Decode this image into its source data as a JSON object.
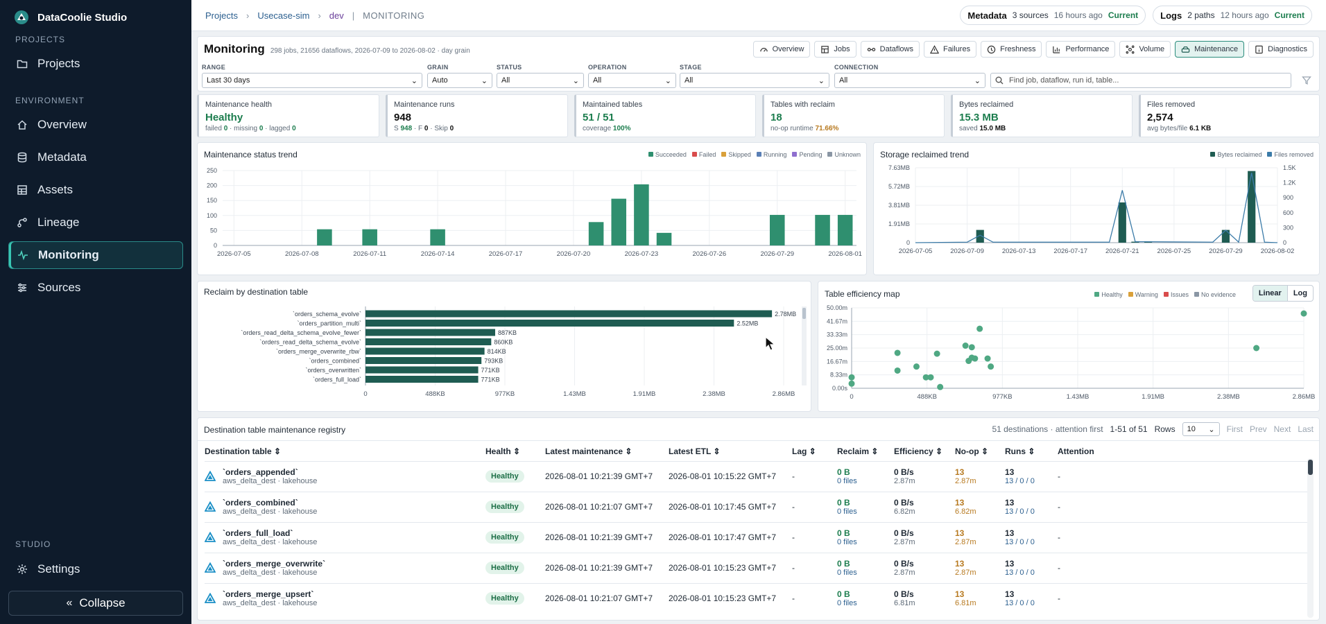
{
  "app": {
    "title": "DataCoolie Studio"
  },
  "sidebar": {
    "section_projects": "PROJECTS",
    "section_environment": "ENVIRONMENT",
    "section_studio": "STUDIO",
    "items": [
      {
        "label": "Projects",
        "icon": "folder-icon"
      },
      {
        "label": "Overview",
        "icon": "home-icon"
      },
      {
        "label": "Metadata",
        "icon": "database-icon"
      },
      {
        "label": "Assets",
        "icon": "grid-icon"
      },
      {
        "label": "Lineage",
        "icon": "lineage-icon"
      },
      {
        "label": "Monitoring",
        "icon": "pulse-icon",
        "active": true
      },
      {
        "label": "Sources",
        "icon": "sliders-icon"
      },
      {
        "label": "Settings",
        "icon": "gear-icon"
      }
    ],
    "collapse_label": "Collapse"
  },
  "breadcrumb": [
    "Projects",
    "Usecase-sim",
    "dev",
    "MONITORING"
  ],
  "status_pills": {
    "metadata": {
      "label": "Metadata",
      "count": "3 sources",
      "time": "16 hours ago",
      "state": "Current"
    },
    "logs": {
      "label": "Logs",
      "count": "2 paths",
      "time": "12 hours ago",
      "state": "Current"
    }
  },
  "page": {
    "title": "Monitoring",
    "subtitle": "298 jobs, 21656 dataflows, 2026-07-09 to 2026-08-02 · day grain",
    "tabs": [
      "Overview",
      "Jobs",
      "Dataflows",
      "Failures",
      "Freshness",
      "Performance",
      "Volume",
      "Maintenance",
      "Diagnostics"
    ],
    "active_tab": "Maintenance"
  },
  "filters": {
    "range": {
      "label": "RANGE",
      "value": "Last 30 days"
    },
    "grain": {
      "label": "GRAIN",
      "value": "Auto"
    },
    "status": {
      "label": "STATUS",
      "value": "All"
    },
    "operation": {
      "label": "OPERATION",
      "value": "All"
    },
    "stage": {
      "label": "STAGE",
      "value": "All"
    },
    "connection": {
      "label": "CONNECTION",
      "value": "All"
    },
    "search_placeholder": "Find job, dataflow, run id, table..."
  },
  "kpis": [
    {
      "title": "Maintenance health",
      "value": "Healthy",
      "sub": "failed 0 · missing 0 · lagged 0"
    },
    {
      "title": "Maintenance runs",
      "value": "948",
      "sub": "S 948 · F 0 · Skip 0"
    },
    {
      "title": "Maintained tables",
      "value": "51 / 51",
      "sub": "coverage 100%"
    },
    {
      "title": "Tables with reclaim",
      "value": "18",
      "sub": "no-op runtime 71.66%"
    },
    {
      "title": "Bytes reclaimed",
      "value": "15.3 MB",
      "sub": "saved 15.0 MB"
    },
    {
      "title": "Files removed",
      "value": "2,574",
      "sub": "avg bytes/file 6.1 KB"
    }
  ],
  "chart_data": [
    {
      "type": "bar",
      "title": "Maintenance status trend",
      "legend": [
        "Succeeded",
        "Failed",
        "Skipped",
        "Running",
        "Pending",
        "Unknown"
      ],
      "legend_colors": [
        "#2f8f6f",
        "#d94c4c",
        "#d9a03a",
        "#5a7fb5",
        "#8f6fcf",
        "#8a96a4"
      ],
      "ylim": [
        0,
        250
      ],
      "yticks": [
        "0",
        "50",
        "100",
        "150",
        "200",
        "250"
      ],
      "xticks": [
        "2026-07-05",
        "2026-07-08",
        "2026-07-11",
        "2026-07-14",
        "2026-07-17",
        "2026-07-20",
        "2026-07-23",
        "2026-07-26",
        "2026-07-29",
        "2026-08-01"
      ],
      "x": [
        "2026-07-09",
        "2026-07-11",
        "2026-07-14",
        "2026-07-21",
        "2026-07-22",
        "2026-07-23",
        "2026-07-24",
        "2026-07-29",
        "2026-07-31",
        "2026-08-01"
      ],
      "values": [
        54,
        54,
        54,
        78,
        156,
        204,
        42,
        102,
        102,
        102
      ]
    },
    {
      "type": "line",
      "title": "Storage reclaimed trend",
      "legend": [
        "Bytes reclaimed",
        "Files removed"
      ],
      "legend_colors": [
        "#1f5c52",
        "#3b7ba8"
      ],
      "yticks_left": [
        "0",
        "1.91MB",
        "3.81MB",
        "5.72MB",
        "7.63MB"
      ],
      "yticks_right": [
        "0",
        "300",
        "600",
        "900",
        "1.2K",
        "1.5K"
      ],
      "xticks": [
        "2026-07-05",
        "2026-07-09",
        "2026-07-13",
        "2026-07-17",
        "2026-07-21",
        "2026-07-25",
        "2026-07-29",
        "2026-08-02"
      ],
      "bars_x": [
        "2026-07-10",
        "2026-07-21",
        "2026-07-22",
        "2026-07-23",
        "2026-07-29",
        "2026-07-31"
      ],
      "bars_mb": [
        1.3,
        4.1,
        0.1,
        0.1,
        1.3,
        7.3
      ],
      "line_x": [
        "2026-07-05",
        "2026-07-09",
        "2026-07-10",
        "2026-07-11",
        "2026-07-20",
        "2026-07-21",
        "2026-07-22",
        "2026-07-28",
        "2026-07-29",
        "2026-07-30",
        "2026-07-31",
        "2026-08-01",
        "2026-08-02"
      ],
      "line_files": [
        0,
        10,
        150,
        10,
        10,
        1050,
        20,
        10,
        250,
        10,
        1400,
        10,
        0
      ]
    },
    {
      "type": "bar",
      "orientation": "horizontal",
      "title": "Reclaim by destination table",
      "categories": [
        "`orders_schema_evolve`",
        "`orders_partition_multi`",
        "`orders_read_delta_schema_evolve_fewer`",
        "`orders_read_delta_schema_evolve`",
        "`orders_merge_overwrite_rbw`",
        "`orders_combined`",
        "`orders_overwritten`",
        "`orders_full_load`"
      ],
      "values_kb": [
        2780,
        2520,
        887,
        860,
        814,
        793,
        771,
        771
      ],
      "labels": [
        "2.78MB",
        "2.52MB",
        "887KB",
        "860KB",
        "814KB",
        "793KB",
        "771KB",
        "771KB"
      ],
      "xticks": [
        "0",
        "488KB",
        "977KB",
        "1.43MB",
        "1.91MB",
        "2.38MB",
        "2.86MB"
      ],
      "xlim_kb": [
        0,
        2860
      ]
    },
    {
      "type": "scatter",
      "title": "Table efficiency map",
      "legend": [
        "Healthy",
        "Warning",
        "Issues",
        "No evidence"
      ],
      "legend_colors": [
        "#4fa883",
        "#d9a03a",
        "#d94c4c",
        "#8a96a4"
      ],
      "scale_options": [
        "Linear",
        "Log"
      ],
      "active_scale": "Linear",
      "xticks": [
        "0",
        "488KB",
        "977KB",
        "1.43MB",
        "1.91MB",
        "2.38MB",
        "2.86MB"
      ],
      "yticks": [
        "0.00s",
        "8.33m",
        "16.67m",
        "25.00m",
        "33.33m",
        "41.67m",
        "50.00m"
      ],
      "xlim_kb": [
        0,
        2860
      ],
      "ylim_min": [
        0,
        50
      ],
      "points": [
        [
          0,
          6.8
        ],
        [
          0,
          2.9
        ],
        [
          290,
          22
        ],
        [
          290,
          11
        ],
        [
          410,
          13.5
        ],
        [
          470,
          6.8
        ],
        [
          500,
          6.8
        ],
        [
          540,
          21.5
        ],
        [
          560,
          0.8
        ],
        [
          720,
          26.5
        ],
        [
          740,
          17
        ],
        [
          760,
          25.5
        ],
        [
          760,
          19
        ],
        [
          780,
          18.5
        ],
        [
          810,
          37
        ],
        [
          860,
          18.5
        ],
        [
          880,
          13.5
        ],
        [
          2560,
          25
        ],
        [
          2860,
          46.5
        ]
      ]
    }
  ],
  "registry": {
    "title": "Destination table maintenance registry",
    "summary": "51 destinations · attention first",
    "range_text": "1-51 of 51",
    "rows_label": "Rows",
    "rows_value": "10",
    "pager": [
      "First",
      "Prev",
      "Next",
      "Last"
    ],
    "columns": [
      "Destination table",
      "Health",
      "Latest maintenance",
      "Latest ETL",
      "Lag",
      "Reclaim",
      "Efficiency",
      "No-op",
      "Runs",
      "Attention"
    ],
    "rows": [
      {
        "name": "`orders_appended`",
        "meta": "aws_delta_dest · lakehouse",
        "health": "Healthy",
        "maint": "2026-08-01 10:21:39 GMT+7",
        "etl": "2026-08-01 10:15:22 GMT+7",
        "lag": "-",
        "reclaim": "0 B",
        "files": "0 files",
        "eff": "0 B/s",
        "eff_t": "2.87m",
        "noop": "13",
        "noop_t": "2.87m",
        "runs": "13",
        "runs_s": "13 / 0 / 0",
        "att": "-"
      },
      {
        "name": "`orders_combined`",
        "meta": "aws_delta_dest · lakehouse",
        "health": "Healthy",
        "maint": "2026-08-01 10:21:07 GMT+7",
        "etl": "2026-08-01 10:17:45 GMT+7",
        "lag": "-",
        "reclaim": "0 B",
        "files": "0 files",
        "eff": "0 B/s",
        "eff_t": "6.82m",
        "noop": "13",
        "noop_t": "6.82m",
        "runs": "13",
        "runs_s": "13 / 0 / 0",
        "att": "-"
      },
      {
        "name": "`orders_full_load`",
        "meta": "aws_delta_dest · lakehouse",
        "health": "Healthy",
        "maint": "2026-08-01 10:21:39 GMT+7",
        "etl": "2026-08-01 10:17:47 GMT+7",
        "lag": "-",
        "reclaim": "0 B",
        "files": "0 files",
        "eff": "0 B/s",
        "eff_t": "2.87m",
        "noop": "13",
        "noop_t": "2.87m",
        "runs": "13",
        "runs_s": "13 / 0 / 0",
        "att": "-"
      },
      {
        "name": "`orders_merge_overwrite`",
        "meta": "aws_delta_dest · lakehouse",
        "health": "Healthy",
        "maint": "2026-08-01 10:21:39 GMT+7",
        "etl": "2026-08-01 10:15:23 GMT+7",
        "lag": "-",
        "reclaim": "0 B",
        "files": "0 files",
        "eff": "0 B/s",
        "eff_t": "2.87m",
        "noop": "13",
        "noop_t": "2.87m",
        "runs": "13",
        "runs_s": "13 / 0 / 0",
        "att": "-"
      },
      {
        "name": "`orders_merge_upsert`",
        "meta": "aws_delta_dest · lakehouse",
        "health": "Healthy",
        "maint": "2026-08-01 10:21:07 GMT+7",
        "etl": "2026-08-01 10:15:23 GMT+7",
        "lag": "-",
        "reclaim": "0 B",
        "files": "0 files",
        "eff": "0 B/s",
        "eff_t": "6.81m",
        "noop": "13",
        "noop_t": "6.81m",
        "runs": "13",
        "runs_s": "13 / 0 / 0",
        "att": "-"
      }
    ]
  }
}
